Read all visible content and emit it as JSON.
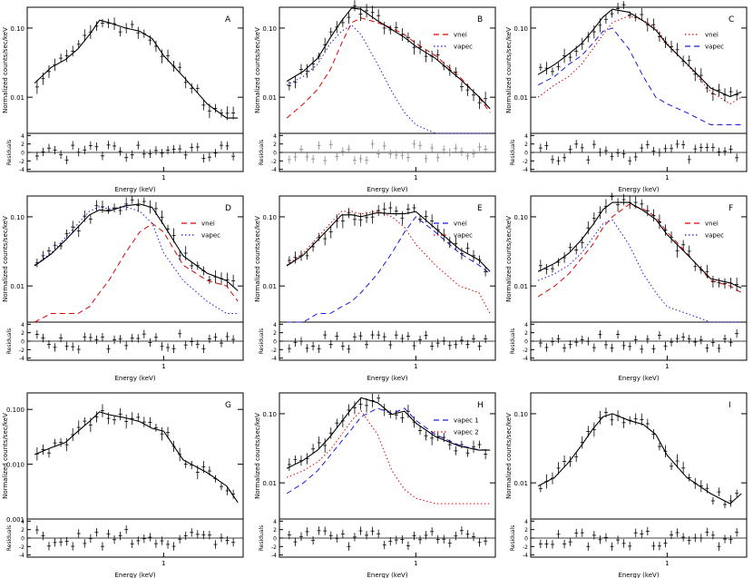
{
  "figure": {
    "panels": [
      {
        "id": "A",
        "xlabel": "Energy (keV)",
        "ylabel": "Normalized counts/sec/keV",
        "rlabel": "Residuals",
        "yticks": [
          "0.10",
          "0.01"
        ],
        "xticks": [
          "1"
        ],
        "rticks": [
          "4",
          "2",
          "0",
          "-2",
          "-4"
        ],
        "legend": []
      },
      {
        "id": "B",
        "xlabel": "Energy (keV)",
        "ylabel": "Normalized counts/sec/keV",
        "rlabel": "Residuals",
        "yticks": [
          "0.10",
          "0.01"
        ],
        "xticks": [
          "1"
        ],
        "rticks": [
          "4",
          "2",
          "0",
          "-2",
          "-4"
        ],
        "legend": [
          {
            "label": "vnei",
            "color": "#e00000",
            "dash": "6,4"
          },
          {
            "label": "vapec",
            "color": "#1a1adf",
            "dash": "1.5,2.5"
          }
        ]
      },
      {
        "id": "C",
        "xlabel": "Energy (keV)",
        "ylabel": "Normalized counts/sec/keV",
        "rlabel": "Residuals",
        "yticks": [
          "0.10",
          "0.01"
        ],
        "xticks": [
          "1"
        ],
        "rticks": [
          "4",
          "2",
          "0",
          "-2",
          "-4"
        ],
        "legend": [
          {
            "label": "vnei",
            "color": "#e00000",
            "dash": "1.5,2.5"
          },
          {
            "label": "vapec",
            "color": "#1a1adf",
            "dash": "6,4"
          }
        ]
      },
      {
        "id": "D",
        "xlabel": "Energy (keV)",
        "ylabel": "Normalized counts/sec/keV",
        "rlabel": "Residuals",
        "yticks": [
          "0.10",
          "0.01"
        ],
        "xticks": [
          "1"
        ],
        "rticks": [
          "4",
          "2",
          "0",
          "-2",
          "-4"
        ],
        "legend": [
          {
            "label": "vnei",
            "color": "#e00000",
            "dash": "6,4"
          },
          {
            "label": "vapec",
            "color": "#1a1adf",
            "dash": "1.5,2.5"
          }
        ]
      },
      {
        "id": "E",
        "xlabel": "Energy (keV)",
        "ylabel": "Normalized counts/sec/keV",
        "rlabel": "Residuals",
        "yticks": [
          "0.10",
          "0.01"
        ],
        "xticks": [
          "1"
        ],
        "rticks": [
          "4",
          "2",
          "0",
          "-2",
          "-4"
        ],
        "legend": [
          {
            "label": "vnei",
            "color": "#1a1adf",
            "dash": "6,4"
          },
          {
            "label": "vapec",
            "color": "#e00000",
            "dash": "1.5,2.5"
          }
        ]
      },
      {
        "id": "F",
        "xlabel": "Energy (keV)",
        "ylabel": "Normalized counts/sec/keV",
        "rlabel": "Residuals",
        "yticks": [
          "0.10",
          "0.01"
        ],
        "xticks": [
          "1"
        ],
        "rticks": [
          "4",
          "2",
          "0",
          "-2",
          "-4"
        ],
        "legend": [
          {
            "label": "vnei",
            "color": "#e00000",
            "dash": "6,4"
          },
          {
            "label": "vapec",
            "color": "#1a1adf",
            "dash": "1.5,2.5"
          }
        ]
      },
      {
        "id": "G",
        "xlabel": "Energy (keV)",
        "ylabel": "Normalized counts/sec/keV",
        "rlabel": "Residuals",
        "yticks": [
          "0.100",
          "0.010",
          "0.001"
        ],
        "xticks": [
          "1"
        ],
        "rticks": [
          "4",
          "2",
          "0",
          "-2",
          "-4"
        ],
        "legend": []
      },
      {
        "id": "H",
        "xlabel": "Energy (keV)",
        "ylabel": "Normalized counts/sec/keV",
        "rlabel": "Residuals",
        "yticks": [
          "0.10",
          "0.01"
        ],
        "xticks": [
          "1"
        ],
        "rticks": [
          "4",
          "2",
          "0",
          "-2",
          "-4"
        ],
        "legend": [
          {
            "label": "vapec 1",
            "color": "#1a1adf",
            "dash": "6,4"
          },
          {
            "label": "vapec 2",
            "color": "#e00000",
            "dash": "1.5,2.5"
          }
        ]
      },
      {
        "id": "I",
        "xlabel": "Energy (keV)",
        "ylabel": "Normalized counts/sec/keV",
        "rlabel": "Residuals",
        "yticks": [
          "0.10",
          "0.01"
        ],
        "xticks": [
          "1"
        ],
        "rticks": [
          "4",
          "2",
          "0",
          "-2",
          "-4"
        ],
        "legend": []
      }
    ]
  },
  "chart_data": [
    {
      "type": "line",
      "panel": "A",
      "xlabel": "Energy (keV)",
      "ylabel": "Normalized counts/sec/keV",
      "xscale": "log",
      "yscale": "log",
      "x": [
        0.3,
        0.35,
        0.4,
        0.45,
        0.5,
        0.55,
        0.6,
        0.7,
        0.8,
        0.9,
        1.0,
        1.2,
        1.5,
        1.8,
        2.0
      ],
      "series": [
        {
          "values": [
            0.016,
            0.027,
            0.035,
            0.05,
            0.08,
            0.13,
            0.12,
            0.1,
            0.09,
            0.07,
            0.04,
            0.02,
            0.008,
            0.005,
            0.005
          ]
        }
      ]
    },
    {
      "type": "line",
      "panel": "B",
      "xlabel": "Energy (keV)",
      "ylabel": "Normalized counts/sec/keV",
      "xscale": "log",
      "yscale": "log",
      "x": [
        0.3,
        0.35,
        0.4,
        0.45,
        0.5,
        0.55,
        0.6,
        0.7,
        0.8,
        0.9,
        1.0,
        1.2,
        1.5,
        1.8,
        2.0
      ],
      "series": [
        {
          "name": "vnei",
          "values": [
            0.005,
            0.008,
            0.013,
            0.025,
            0.06,
            0.12,
            0.14,
            0.12,
            0.1,
            0.08,
            0.06,
            0.04,
            0.02,
            0.01,
            0.006
          ]
        },
        {
          "name": "vapec",
          "values": [
            0.015,
            0.02,
            0.03,
            0.06,
            0.09,
            0.11,
            0.08,
            0.03,
            0.012,
            0.006,
            0.004,
            0.003,
            0.002,
            0.002,
            0.002
          ]
        }
      ]
    },
    {
      "type": "line",
      "panel": "C",
      "xlabel": "Energy (keV)",
      "ylabel": "Normalized counts/sec/keV",
      "xscale": "log",
      "yscale": "log",
      "x": [
        0.3,
        0.35,
        0.4,
        0.45,
        0.5,
        0.55,
        0.6,
        0.7,
        0.8,
        0.9,
        1.0,
        1.2,
        1.5,
        1.8,
        2.0
      ],
      "series": [
        {
          "name": "vnei",
          "values": [
            0.01,
            0.015,
            0.02,
            0.03,
            0.05,
            0.08,
            0.12,
            0.15,
            0.13,
            0.1,
            0.06,
            0.03,
            0.012,
            0.008,
            0.01
          ]
        },
        {
          "name": "vapec",
          "values": [
            0.015,
            0.02,
            0.03,
            0.04,
            0.06,
            0.09,
            0.1,
            0.05,
            0.02,
            0.01,
            0.008,
            0.006,
            0.004,
            0.004,
            0.004
          ]
        }
      ]
    },
    {
      "type": "line",
      "panel": "D",
      "xlabel": "Energy (keV)",
      "ylabel": "Normalized counts/sec/keV",
      "xscale": "log",
      "yscale": "log",
      "x": [
        0.3,
        0.35,
        0.4,
        0.45,
        0.5,
        0.55,
        0.6,
        0.7,
        0.8,
        0.9,
        1.0,
        1.2,
        1.5,
        1.8,
        2.0
      ],
      "series": [
        {
          "name": "vnei",
          "values": [
            0.003,
            0.004,
            0.004,
            0.004,
            0.005,
            0.008,
            0.012,
            0.03,
            0.06,
            0.08,
            0.06,
            0.02,
            0.012,
            0.01,
            0.006
          ]
        },
        {
          "name": "vapec",
          "values": [
            0.02,
            0.03,
            0.05,
            0.08,
            0.12,
            0.14,
            0.13,
            0.14,
            0.12,
            0.08,
            0.03,
            0.012,
            0.006,
            0.004,
            0.004
          ]
        }
      ]
    },
    {
      "type": "line",
      "panel": "E",
      "xlabel": "Energy (keV)",
      "ylabel": "Normalized counts/sec/keV",
      "xscale": "log",
      "yscale": "log",
      "x": [
        0.3,
        0.35,
        0.4,
        0.45,
        0.5,
        0.55,
        0.6,
        0.7,
        0.8,
        0.9,
        1.0,
        1.2,
        1.5,
        1.8,
        2.0
      ],
      "series": [
        {
          "name": "vnei",
          "values": [
            0.003,
            0.003,
            0.004,
            0.004,
            0.005,
            0.006,
            0.008,
            0.015,
            0.03,
            0.06,
            0.1,
            0.06,
            0.03,
            0.02,
            0.015
          ]
        },
        {
          "name": "vapec",
          "values": [
            0.02,
            0.03,
            0.05,
            0.08,
            0.12,
            0.12,
            0.11,
            0.12,
            0.1,
            0.07,
            0.04,
            0.02,
            0.01,
            0.008,
            0.004
          ]
        }
      ]
    },
    {
      "type": "line",
      "panel": "F",
      "xlabel": "Energy (keV)",
      "ylabel": "Normalized counts/sec/keV",
      "xscale": "log",
      "yscale": "log",
      "x": [
        0.3,
        0.35,
        0.4,
        0.45,
        0.5,
        0.55,
        0.6,
        0.7,
        0.8,
        0.9,
        1.0,
        1.2,
        1.5,
        1.8,
        2.0
      ],
      "series": [
        {
          "name": "vnei",
          "values": [
            0.007,
            0.01,
            0.015,
            0.025,
            0.04,
            0.07,
            0.1,
            0.15,
            0.13,
            0.1,
            0.06,
            0.03,
            0.012,
            0.01,
            0.008
          ]
        },
        {
          "name": "vapec",
          "values": [
            0.012,
            0.015,
            0.02,
            0.03,
            0.05,
            0.08,
            0.09,
            0.04,
            0.015,
            0.008,
            0.005,
            0.004,
            0.003,
            0.003,
            0.003
          ]
        }
      ]
    },
    {
      "type": "line",
      "panel": "G",
      "xlabel": "Energy (keV)",
      "ylabel": "Normalized counts/sec/keV",
      "xscale": "log",
      "yscale": "log",
      "x": [
        0.3,
        0.35,
        0.4,
        0.45,
        0.5,
        0.55,
        0.6,
        0.7,
        0.8,
        0.9,
        1.0,
        1.2,
        1.5,
        1.8,
        2.0
      ],
      "series": [
        {
          "values": [
            0.015,
            0.02,
            0.025,
            0.04,
            0.06,
            0.09,
            0.08,
            0.07,
            0.06,
            0.045,
            0.04,
            0.012,
            0.007,
            0.004,
            0.002
          ]
        }
      ]
    },
    {
      "type": "line",
      "panel": "H",
      "xlabel": "Energy (keV)",
      "ylabel": "Normalized counts/sec/keV",
      "xscale": "log",
      "yscale": "log",
      "x": [
        0.3,
        0.35,
        0.4,
        0.45,
        0.5,
        0.55,
        0.6,
        0.7,
        0.8,
        0.9,
        1.0,
        1.2,
        1.5,
        1.8,
        2.0
      ],
      "series": [
        {
          "name": "vapec 1",
          "values": [
            0.007,
            0.01,
            0.015,
            0.025,
            0.04,
            0.06,
            0.09,
            0.12,
            0.1,
            0.12,
            0.08,
            0.05,
            0.035,
            0.03,
            0.03
          ]
        },
        {
          "name": "vapec 2",
          "values": [
            0.012,
            0.015,
            0.02,
            0.03,
            0.05,
            0.08,
            0.11,
            0.05,
            0.015,
            0.008,
            0.006,
            0.005,
            0.005,
            0.005,
            0.005
          ]
        }
      ]
    },
    {
      "type": "line",
      "panel": "I",
      "xlabel": "Energy (keV)",
      "ylabel": "Normalized counts/sec/keV",
      "xscale": "log",
      "yscale": "log",
      "x": [
        0.3,
        0.35,
        0.4,
        0.45,
        0.5,
        0.55,
        0.6,
        0.7,
        0.8,
        0.9,
        1.0,
        1.2,
        1.5,
        1.8,
        2.0
      ],
      "series": [
        {
          "values": [
            0.009,
            0.012,
            0.02,
            0.035,
            0.06,
            0.09,
            0.1,
            0.08,
            0.07,
            0.05,
            0.025,
            0.012,
            0.007,
            0.005,
            0.007
          ]
        }
      ]
    }
  ]
}
